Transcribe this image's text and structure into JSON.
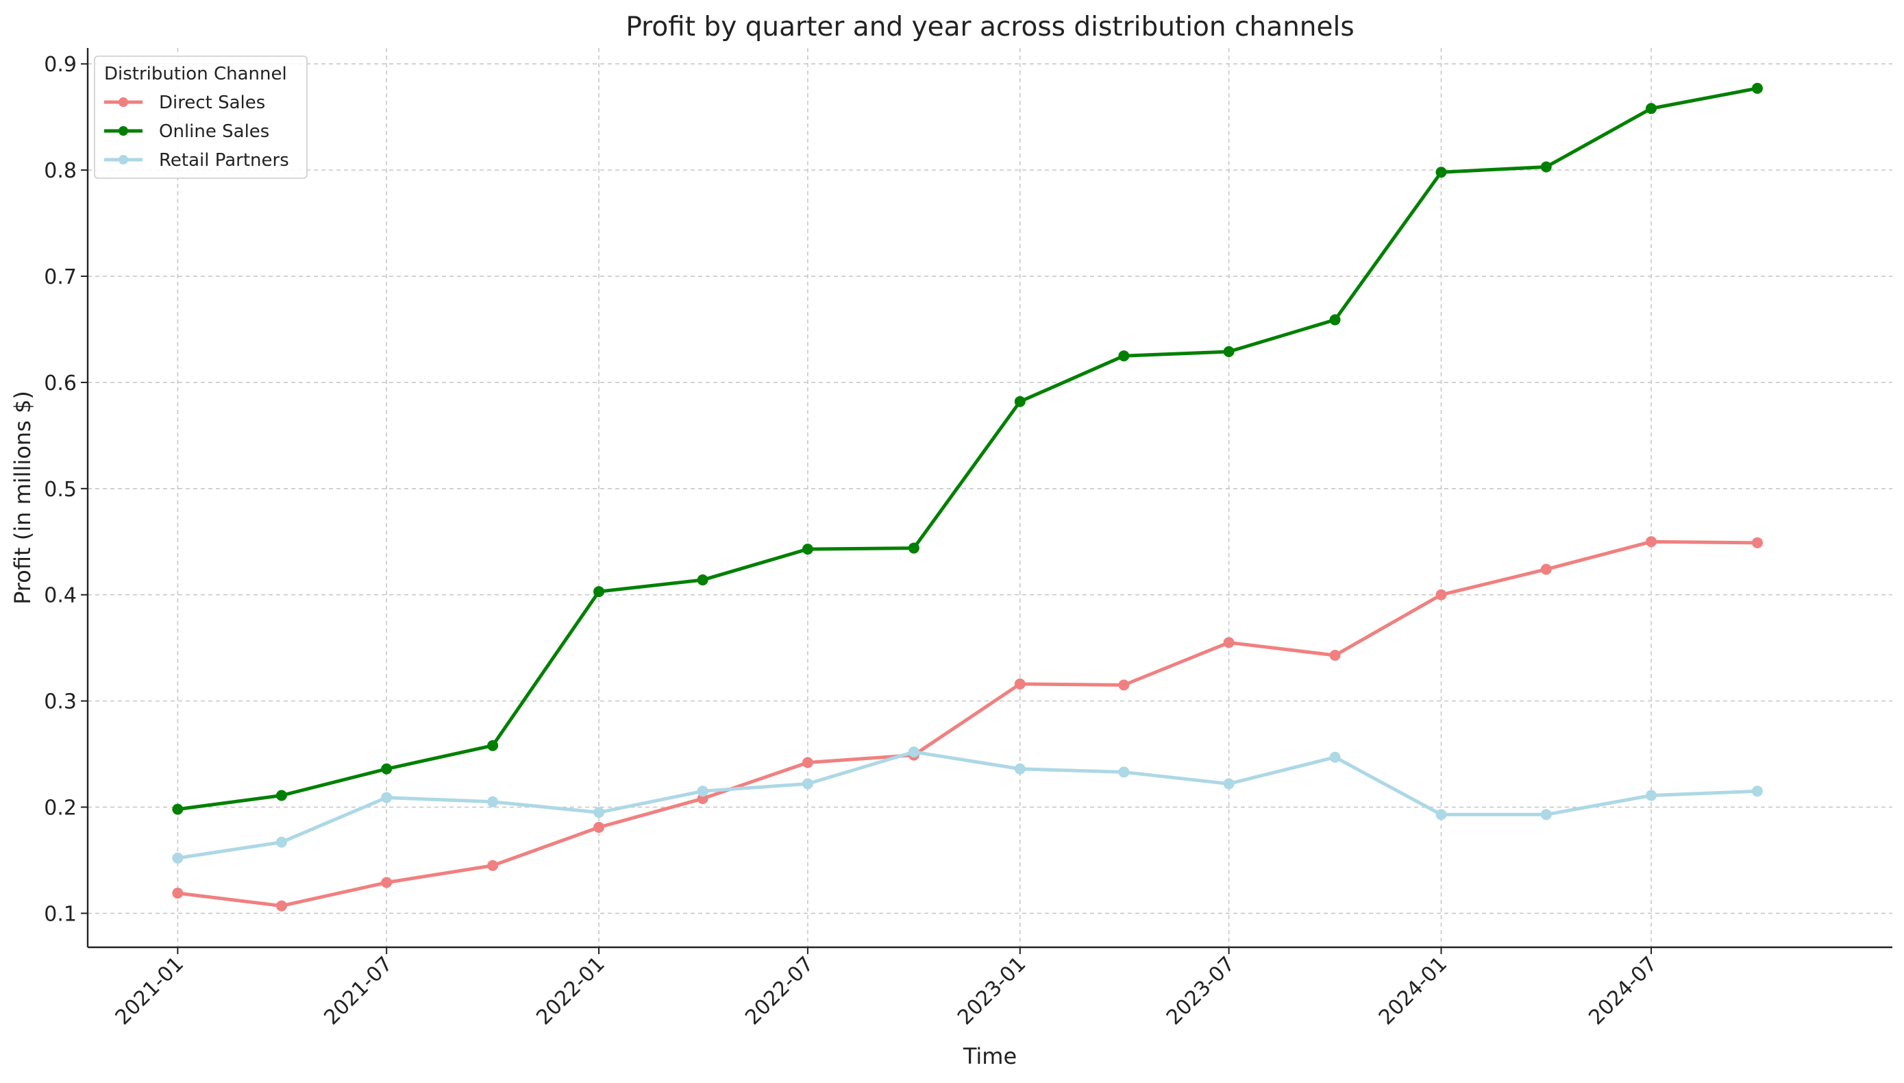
{
  "chart_data": {
    "type": "line",
    "title": "Profit by quarter and year across distribution channels",
    "xlabel": "Time",
    "ylabel": "Profit (in millions $)",
    "x": [
      "2021-01",
      "2021-04",
      "2021-07",
      "2021-10",
      "2022-01",
      "2022-04",
      "2022-07",
      "2022-10",
      "2023-01",
      "2023-04",
      "2023-07",
      "2023-10",
      "2024-01",
      "2024-04",
      "2024-07",
      "2024-10"
    ],
    "x_tick_labels": [
      "2021-01",
      "2021-07",
      "2022-01",
      "2022-07",
      "2023-01",
      "2023-07",
      "2024-01",
      "2024-07"
    ],
    "y_ticks": [
      0.1,
      0.2,
      0.3,
      0.4,
      0.5,
      0.6,
      0.7,
      0.8,
      0.9
    ],
    "ylim": [
      0.068,
      0.915
    ],
    "xlim": [
      "2020-10-15",
      "2025-01-26"
    ],
    "grid": true,
    "legend": {
      "title": "Distribution Channel",
      "placement": "top-left"
    },
    "series": [
      {
        "name": "Direct Sales",
        "color": "#f08080",
        "values": [
          0.119,
          0.107,
          0.129,
          0.145,
          0.181,
          0.208,
          0.242,
          0.249,
          0.316,
          0.315,
          0.355,
          0.343,
          0.4,
          0.424,
          0.45,
          0.449
        ]
      },
      {
        "name": "Online Sales",
        "color": "#008000",
        "values": [
          0.198,
          0.211,
          0.236,
          0.258,
          0.403,
          0.414,
          0.443,
          0.444,
          0.582,
          0.625,
          0.629,
          0.659,
          0.798,
          0.803,
          0.858,
          0.877
        ]
      },
      {
        "name": "Retail Partners",
        "color": "#add8e6",
        "values": [
          0.152,
          0.167,
          0.209,
          0.205,
          0.195,
          0.215,
          0.222,
          0.252,
          0.236,
          0.233,
          0.222,
          0.247,
          0.193,
          0.193,
          0.211,
          0.215
        ]
      }
    ]
  }
}
